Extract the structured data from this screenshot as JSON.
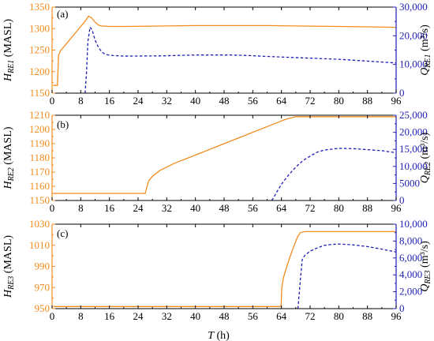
{
  "colors": {
    "h_axis": "#f28c1e",
    "q_axis": "#1f1fb4",
    "frame": "#000000"
  },
  "x_axis": {
    "label_italic": "T",
    "label_rest": " (h)",
    "ticks": [
      0,
      8,
      16,
      24,
      32,
      40,
      48,
      56,
      64,
      72,
      80,
      88,
      96
    ],
    "range": [
      0,
      96
    ]
  },
  "chart_data": [
    {
      "panel": "(a)",
      "type": "line",
      "left_axis": {
        "label_main": "H",
        "label_sub": "RE1",
        "label_unit": " (MASL)",
        "range": [
          1150,
          1350
        ],
        "ticks": [
          "1150",
          "1200",
          "1250",
          "1300",
          "1350"
        ]
      },
      "right_axis": {
        "label_main": "Q",
        "label_sub": "RE1",
        "label_unit": " (m³/s)",
        "range": [
          0,
          30000
        ],
        "ticks": [
          "0",
          "10,000",
          "20,000",
          "30,000"
        ]
      },
      "series": [
        {
          "axis": "left",
          "style": "solid",
          "x": [
            0.3,
            1.5,
            1.8,
            2.3,
            3,
            5,
            7,
            9,
            10.2,
            11,
            12,
            13,
            14,
            16,
            20,
            30,
            40,
            50,
            60,
            70,
            80,
            90,
            96
          ],
          "y": [
            1168,
            1168,
            1238,
            1248,
            1255,
            1275,
            1295,
            1315,
            1329,
            1325,
            1315,
            1308,
            1306,
            1305,
            1305,
            1306,
            1307,
            1307,
            1307,
            1306,
            1305,
            1304,
            1303
          ]
        },
        {
          "axis": "right",
          "style": "dashed",
          "x": [
            9.2,
            9.6,
            10,
            10.6,
            11.2,
            12,
            13,
            14,
            15,
            16,
            20,
            30,
            40,
            50,
            55,
            60,
            70,
            80,
            90,
            96
          ],
          "y": [
            0,
            7000,
            18000,
            23000,
            22000,
            18500,
            15800,
            14200,
            13500,
            13200,
            12900,
            13000,
            13300,
            13300,
            13100,
            12800,
            12300,
            11800,
            11000,
            10500
          ]
        }
      ]
    },
    {
      "panel": "(b)",
      "type": "line",
      "left_axis": {
        "label_main": "H",
        "label_sub": "RE2",
        "label_unit": " (MASL)",
        "range": [
          1150,
          1210
        ],
        "ticks": [
          "1150",
          "1160",
          "1170",
          "1180",
          "1190",
          "1200",
          "1210"
        ]
      },
      "right_axis": {
        "label_main": "Q",
        "label_sub": "RE2",
        "label_unit": " (m³/s)",
        "range": [
          0,
          25000
        ],
        "ticks": [
          "0",
          "5000",
          "10,000",
          "15,000",
          "20,000",
          "25,000"
        ]
      },
      "series": [
        {
          "axis": "left",
          "style": "solid",
          "x": [
            0.3,
            10,
            20,
            26,
            26.5,
            27,
            28,
            30,
            34,
            40,
            48,
            56,
            62,
            65,
            68,
            72,
            80,
            88,
            96
          ],
          "y": [
            1155,
            1155,
            1155,
            1155,
            1160,
            1164,
            1167,
            1171,
            1176,
            1182,
            1190,
            1198,
            1204,
            1207,
            1209,
            1209,
            1209,
            1209,
            1209
          ]
        },
        {
          "axis": "right",
          "style": "dashed",
          "x": [
            61.3,
            62,
            63,
            64,
            66,
            68,
            70,
            72,
            74,
            76,
            80,
            84,
            88,
            92,
            96
          ],
          "y": [
            0,
            1200,
            3000,
            4800,
            7500,
            9800,
            11700,
            13000,
            14200,
            14800,
            15300,
            15200,
            14900,
            14600,
            14000
          ]
        }
      ]
    },
    {
      "panel": "(c)",
      "type": "line",
      "left_axis": {
        "label_main": "H",
        "label_sub": "RE3",
        "label_unit": " (MASL)",
        "range": [
          950,
          1030
        ],
        "ticks": [
          "950",
          "970",
          "990",
          "1010",
          "1030"
        ]
      },
      "right_axis": {
        "label_main": "Q",
        "label_sub": "RE3",
        "label_unit": " (m³/s)",
        "range": [
          0,
          10000
        ],
        "ticks": [
          "0",
          "2,000",
          "4,000",
          "6,000",
          "8,000",
          "10,000"
        ]
      },
      "series": [
        {
          "axis": "left",
          "style": "solid",
          "x": [
            0.3,
            20,
            40,
            63.9,
            64.1,
            64.6,
            65.5,
            67,
            68.5,
            69.3,
            70.5,
            72,
            80,
            88,
            96
          ],
          "y": [
            952,
            952,
            952,
            952,
            970,
            980,
            990,
            1005,
            1018,
            1022,
            1023,
            1023,
            1023,
            1023,
            1023
          ]
        },
        {
          "axis": "right",
          "style": "dashed",
          "x": [
            68.6,
            69.3,
            69.8,
            70.5,
            72,
            74,
            76,
            78,
            80,
            84,
            88,
            92,
            96
          ],
          "y": [
            0,
            3500,
            5800,
            6300,
            6800,
            7200,
            7500,
            7600,
            7650,
            7550,
            7350,
            7050,
            6700
          ]
        }
      ]
    }
  ]
}
